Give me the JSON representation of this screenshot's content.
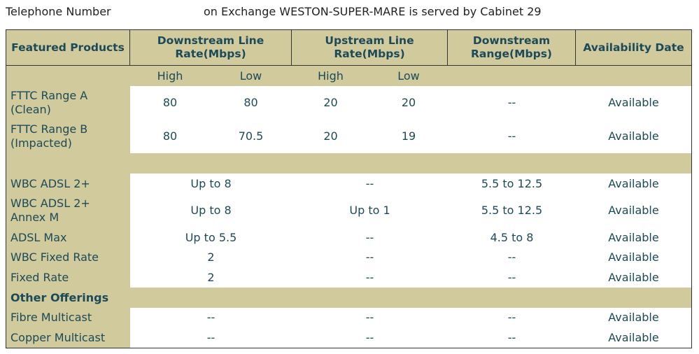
{
  "header": {
    "label": "Telephone Number",
    "exchange": "on Exchange WESTON-SUPER-MARE is served by Cabinet 29"
  },
  "table": {
    "columns": [
      "Featured Products",
      "Downstream Line Rate(Mbps)",
      "Upstream Line Rate(Mbps)",
      "Downstream Range(Mbps)",
      "Availability Date"
    ],
    "subcolumns": [
      "High",
      "Low",
      "High",
      "Low"
    ],
    "fttc_rows": [
      [
        "FTTC Range A (Clean)",
        80,
        80,
        20,
        20,
        "--",
        "Available"
      ],
      [
        "FTTC Range B (Impacted)",
        80,
        70.5,
        20,
        19,
        "--",
        "Available"
      ]
    ],
    "adsl_rows": [
      [
        "WBC ADSL 2+",
        "Up to 8",
        "--",
        "5.5 to 12.5",
        "Available"
      ],
      [
        "WBC ADSL 2+ Annex M",
        "Up to 8",
        "Up to 1",
        "5.5 to 12.5",
        "Available"
      ],
      [
        "ADSL Max",
        "Up to 5.5",
        "--",
        "4.5 to 8",
        "Available"
      ],
      [
        "WBC Fixed Rate",
        2,
        "--",
        "--",
        "Available"
      ],
      [
        "Fixed Rate",
        2,
        "--",
        "--",
        "Available"
      ]
    ],
    "section": "Other Offerings",
    "other_rows": [
      [
        "Fibre Multicast",
        "--",
        "--",
        "--",
        "Available"
      ],
      [
        "Copper Multicast",
        "--",
        "--",
        "--",
        "Available"
      ]
    ]
  }
}
